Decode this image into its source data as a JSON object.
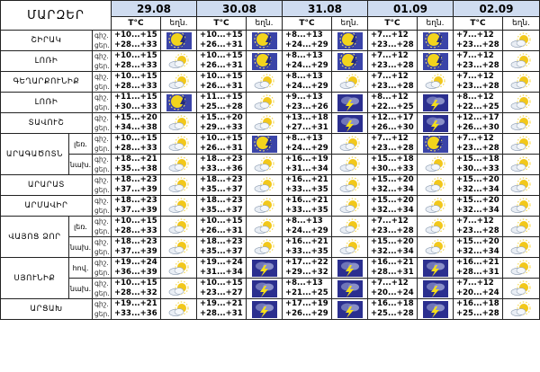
{
  "header": {
    "title": "ՄԱՐԶԵՐ",
    "dates": [
      "29.08",
      "30.08",
      "31.08",
      "01.09",
      "02.09"
    ],
    "temp_label": "T°C",
    "icon_label": "եղն.",
    "day_label": "ցեր.",
    "night_label": "գիշ."
  },
  "rows": [
    {
      "region": "ՇԻՐԱԿ",
      "sub": "",
      "days": [
        {
          "night": "+10...+15",
          "day": "+28...+33",
          "icon": "sun-storm-icon"
        },
        {
          "night": "+10...+15",
          "day": "+26...+31",
          "icon": "sun-storm-icon"
        },
        {
          "night": "+8...+13",
          "day": "+24...+29",
          "icon": "sun-storm-icon"
        },
        {
          "night": "+7...+12",
          "day": "+23...+28",
          "icon": "sun-storm-icon"
        },
        {
          "night": "+7...+12",
          "day": "+23...+28",
          "icon": "sun-cloud-icon"
        }
      ]
    },
    {
      "region": "ԼՈՌԻ",
      "sub": "",
      "days": [
        {
          "night": "+10...+15",
          "day": "+28...+33",
          "icon": "sun-cloud-icon"
        },
        {
          "night": "+10...+15",
          "day": "+26...+31",
          "icon": "sun-storm-icon"
        },
        {
          "night": "+8...+13",
          "day": "+24...+29",
          "icon": "sun-storm-icon"
        },
        {
          "night": "+7...+12",
          "day": "+23...+28",
          "icon": "sun-storm-icon"
        },
        {
          "night": "+7...+12",
          "day": "+23...+28",
          "icon": "sun-cloud-icon"
        }
      ]
    },
    {
      "region": "ԳԵՂԱՐՔՈՒՆԻՔ",
      "sub": "",
      "days": [
        {
          "night": "+10...+15",
          "day": "+28...+33",
          "icon": "sun-cloud-icon"
        },
        {
          "night": "+10...+15",
          "day": "+26...+31",
          "icon": "sun-cloud-icon"
        },
        {
          "night": "+8...+13",
          "day": "+24...+29",
          "icon": "sun-cloud-icon"
        },
        {
          "night": "+7...+12",
          "day": "+23...+28",
          "icon": "sun-cloud-icon"
        },
        {
          "night": "+7...+12",
          "day": "+23...+28",
          "icon": "sun-cloud-icon"
        }
      ]
    },
    {
      "region": "ԼՈՌԻ",
      "sub": "",
      "days": [
        {
          "night": "+11...+15",
          "day": "+30...+33",
          "icon": "sun-storm-icon"
        },
        {
          "night": "+11...+15",
          "day": "+25...+28",
          "icon": "sun-cloud-icon"
        },
        {
          "night": "+9...+13",
          "day": "+23...+26",
          "icon": "storm-icon"
        },
        {
          "night": "+8...+12",
          "day": "+22...+25",
          "icon": "storm-icon"
        },
        {
          "night": "+8...+12",
          "day": "+22...+25",
          "icon": "sun-cloud-icon"
        }
      ]
    },
    {
      "region": "ՏԱՎՈՒՇ",
      "sub": "",
      "days": [
        {
          "night": "+15...+20",
          "day": "+34...+38",
          "icon": "sun-cloud-icon"
        },
        {
          "night": "+15...+20",
          "day": "+29...+33",
          "icon": "sun-cloud-icon"
        },
        {
          "night": "+13...+18",
          "day": "+27...+31",
          "icon": "storm-icon"
        },
        {
          "night": "+12...+17",
          "day": "+26...+30",
          "icon": "storm-icon"
        },
        {
          "night": "+12...+17",
          "day": "+26...+30",
          "icon": "sun-cloud-icon"
        }
      ]
    },
    {
      "region": "ԱՐԱԳԱԾՈՏՆ",
      "sub": "լեռ.",
      "days": [
        {
          "night": "+10...+15",
          "day": "+28...+33",
          "icon": "sun-cloud-icon"
        },
        {
          "night": "+10...+15",
          "day": "+26...+31",
          "icon": "sun-storm-icon"
        },
        {
          "night": "+8...+13",
          "day": "+24...+29",
          "icon": "sun-cloud-icon"
        },
        {
          "night": "+7...+12",
          "day": "+23...+28",
          "icon": "sun-storm-icon"
        },
        {
          "night": "+7...+12",
          "day": "+23...+28",
          "icon": "sun-cloud-icon"
        }
      ]
    },
    {
      "region": "",
      "sub": "նախ.",
      "days": [
        {
          "night": "+18...+21",
          "day": "+35...+38",
          "icon": "sun-cloud-icon"
        },
        {
          "night": "+18...+23",
          "day": "+33...+36",
          "icon": "sun-cloud-icon"
        },
        {
          "night": "+16...+19",
          "day": "+31...+34",
          "icon": "sun-cloud-icon"
        },
        {
          "night": "+15...+18",
          "day": "+30...+33",
          "icon": "sun-cloud-icon"
        },
        {
          "night": "+15...+18",
          "day": "+30...+33",
          "icon": "sun-cloud-icon"
        }
      ]
    },
    {
      "region": "ԱՐԱՐԱՏ",
      "sub": "",
      "days": [
        {
          "night": "+18...+23",
          "day": "+37...+39",
          "icon": "sun-cloud-icon"
        },
        {
          "night": "+18...+23",
          "day": "+35...+37",
          "icon": "sun-cloud-icon"
        },
        {
          "night": "+16...+21",
          "day": "+33...+35",
          "icon": "sun-cloud-icon"
        },
        {
          "night": "+15...+20",
          "day": "+32...+34",
          "icon": "sun-cloud-icon"
        },
        {
          "night": "+15...+20",
          "day": "+32...+34",
          "icon": "sun-cloud-icon"
        }
      ]
    },
    {
      "region": "ԱՐՄԱՎԻՐ",
      "sub": "",
      "days": [
        {
          "night": "+18...+23",
          "day": "+37...+39",
          "icon": "sun-cloud-icon"
        },
        {
          "night": "+18...+23",
          "day": "+35...+37",
          "icon": "sun-cloud-icon"
        },
        {
          "night": "+16...+21",
          "day": "+33...+35",
          "icon": "sun-cloud-icon"
        },
        {
          "night": "+15...+20",
          "day": "+32...+34",
          "icon": "sun-cloud-icon"
        },
        {
          "night": "+15...+20",
          "day": "+32...+34",
          "icon": "sun-cloud-icon"
        }
      ]
    },
    {
      "region": "ՎԱՅՈՑ ՁՈՐ",
      "sub": "լեռ.",
      "days": [
        {
          "night": "+10...+15",
          "day": "+28...+33",
          "icon": "sun-cloud-icon"
        },
        {
          "night": "+10...+15",
          "day": "+26...+31",
          "icon": "sun-cloud-icon"
        },
        {
          "night": "+8...+13",
          "day": "+24...+29",
          "icon": "sun-cloud-icon"
        },
        {
          "night": "+7...+12",
          "day": "+23...+28",
          "icon": "sun-cloud-icon"
        },
        {
          "night": "+7...+12",
          "day": "+23...+28",
          "icon": "sun-cloud-icon"
        }
      ]
    },
    {
      "region": "",
      "sub": "նախ.",
      "days": [
        {
          "night": "+18...+23",
          "day": "+37...+39",
          "icon": "sun-cloud-icon"
        },
        {
          "night": "+18...+23",
          "day": "+35...+37",
          "icon": "sun-cloud-icon"
        },
        {
          "night": "+16...+21",
          "day": "+33...+35",
          "icon": "sun-cloud-icon"
        },
        {
          "night": "+15...+20",
          "day": "+32...+34",
          "icon": "sun-cloud-icon"
        },
        {
          "night": "+15...+20",
          "day": "+32...+34",
          "icon": "sun-cloud-icon"
        }
      ]
    },
    {
      "region": "ՍՅՈՒՆԻՔ",
      "sub": "հով.",
      "days": [
        {
          "night": "+19...+24",
          "day": "+36...+39",
          "icon": "sun-cloud-icon"
        },
        {
          "night": "+19...+24",
          "day": "+31...+34",
          "icon": "storm-icon"
        },
        {
          "night": "+17...+22",
          "day": "+29...+32",
          "icon": "storm-icon"
        },
        {
          "night": "+16...+21",
          "day": "+28...+31",
          "icon": "storm-icon"
        },
        {
          "night": "+16...+21",
          "day": "+28...+31",
          "icon": "sun-cloud-icon"
        }
      ]
    },
    {
      "region": "",
      "sub": "նախ.",
      "days": [
        {
          "night": "+10...+15",
          "day": "+28...+32",
          "icon": "sun-cloud-icon"
        },
        {
          "night": "+10...+15",
          "day": "+23...+27",
          "icon": "storm-icon"
        },
        {
          "night": "+8...+13",
          "day": "+21...+25",
          "icon": "storm-icon"
        },
        {
          "night": "+7...+12",
          "day": "+20...+24",
          "icon": "storm-icon"
        },
        {
          "night": "+7...+12",
          "day": "+20...+24",
          "icon": "sun-cloud-icon"
        }
      ]
    },
    {
      "region": "ԱՐՑԱԽ",
      "sub": "",
      "days": [
        {
          "night": "+19...+21",
          "day": "+33...+36",
          "icon": "sun-cloud-icon"
        },
        {
          "night": "+19...+21",
          "day": "+28...+31",
          "icon": "storm-icon"
        },
        {
          "night": "+17...+19",
          "day": "+26...+29",
          "icon": "storm-icon"
        },
        {
          "night": "+16...+18",
          "day": "+25...+28",
          "icon": "storm-icon"
        },
        {
          "night": "+16...+18",
          "day": "+25...+28",
          "icon": "sun-cloud-icon"
        }
      ]
    }
  ],
  "colors": {
    "header_bg": "#cfdcf0",
    "grid": "#222222",
    "sun": "#f2d41c",
    "storm_bg": "#2b2f8f",
    "lightning": "#f5e01a"
  }
}
